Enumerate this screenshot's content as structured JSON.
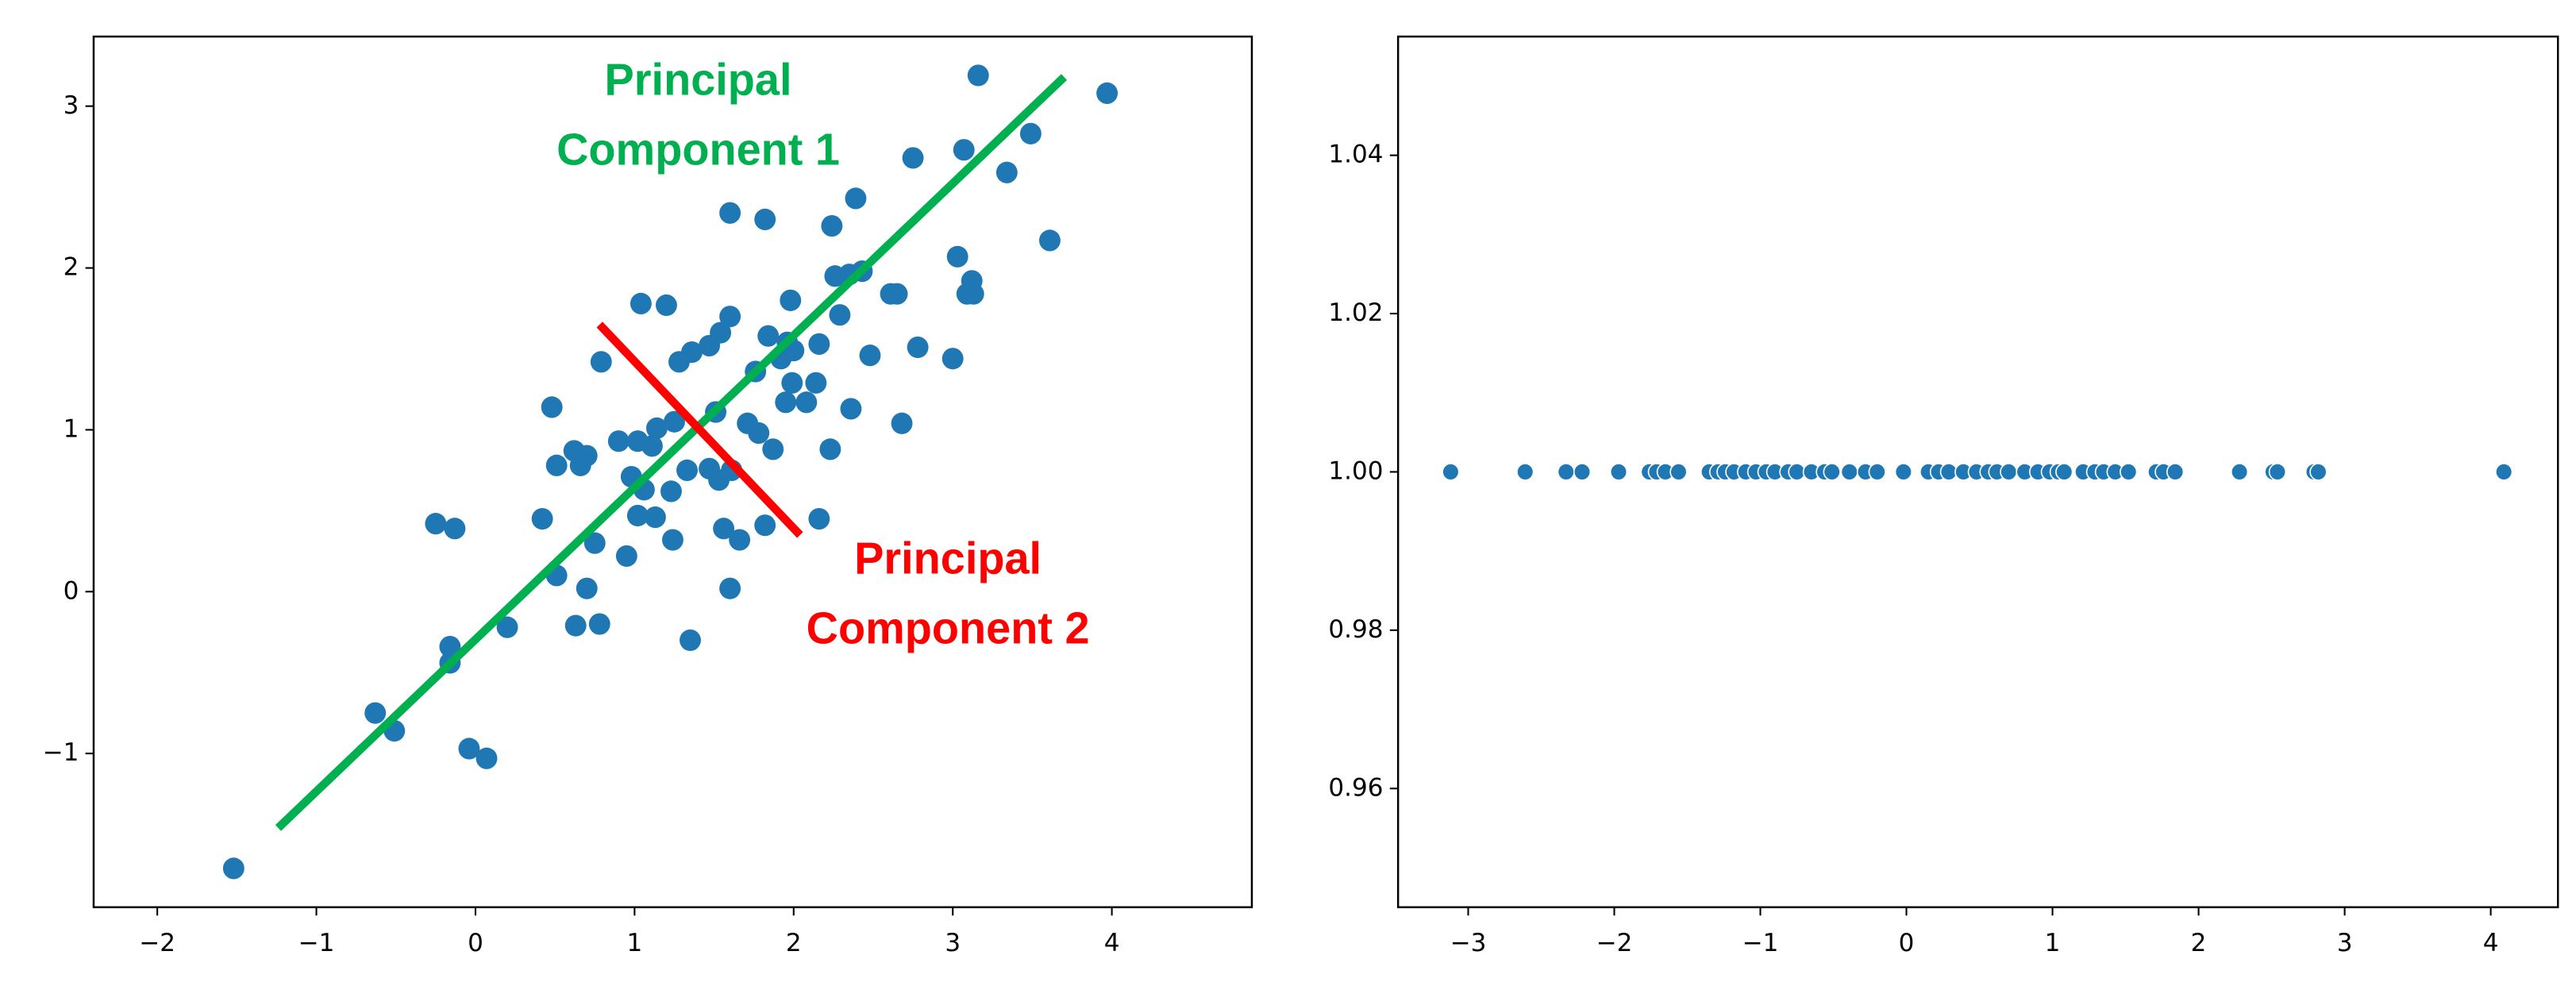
{
  "chart_data": [
    {
      "type": "scatter",
      "color": "#1f77b4",
      "x": [
        -1.52,
        -0.63,
        -0.51,
        -0.25,
        -0.13,
        -0.16,
        -0.16,
        -0.04,
        0.07,
        0.2,
        0.42,
        0.48,
        0.51,
        0.51,
        0.62,
        0.66,
        0.7,
        0.63,
        0.7,
        0.78,
        0.75,
        0.79,
        0.9,
        0.95,
        0.98,
        1.02,
        1.04,
        1.02,
        1.06,
        1.11,
        1.14,
        1.13,
        1.2,
        1.23,
        1.24,
        1.25,
        1.28,
        1.33,
        1.36,
        1.35,
        1.47,
        1.47,
        1.51,
        1.53,
        1.54,
        1.56,
        1.6,
        1.6,
        1.6,
        1.61,
        1.66,
        1.71,
        1.76,
        1.78,
        1.82,
        1.84,
        1.87,
        1.82,
        1.92,
        1.95,
        1.96,
        1.98,
        1.99,
        2.0,
        2.08,
        2.14,
        2.16,
        2.16,
        2.23,
        2.24,
        2.26,
        2.29,
        2.35,
        2.36,
        2.39,
        2.43,
        2.48,
        2.61,
        2.65,
        2.68,
        2.75,
        2.78,
        3.0,
        3.03,
        3.07,
        3.09,
        3.12,
        3.13,
        3.16,
        3.34,
        3.49,
        3.61,
        3.97
      ],
      "values": [
        -1.71,
        -0.75,
        -0.86,
        0.42,
        0.39,
        -0.34,
        -0.44,
        -0.97,
        -1.03,
        -0.22,
        0.45,
        1.14,
        0.1,
        0.78,
        0.87,
        0.78,
        0.84,
        -0.21,
        0.02,
        -0.2,
        0.3,
        1.42,
        0.93,
        0.22,
        0.71,
        0.93,
        1.78,
        0.47,
        0.63,
        0.9,
        1.01,
        0.46,
        1.77,
        0.62,
        0.32,
        1.05,
        1.42,
        0.75,
        1.48,
        -0.3,
        1.52,
        0.76,
        1.11,
        0.69,
        1.6,
        0.39,
        1.7,
        2.34,
        0.02,
        0.75,
        0.32,
        1.04,
        1.36,
        0.98,
        2.3,
        1.58,
        0.88,
        0.41,
        1.44,
        1.17,
        1.54,
        1.8,
        1.29,
        1.49,
        1.17,
        1.29,
        1.53,
        0.45,
        0.88,
        2.26,
        1.95,
        1.71,
        1.96,
        1.13,
        2.43,
        1.98,
        1.46,
        1.84,
        1.84,
        1.04,
        2.68,
        1.51,
        1.44,
        2.07,
        2.73,
        1.84,
        1.92,
        1.84,
        3.19,
        2.59,
        2.83,
        2.17,
        3.08
      ],
      "lines": [
        {
          "color": "#00b050",
          "x": [
            -1.24,
            3.7
          ],
          "y": [
            -1.46,
            3.18
          ]
        },
        {
          "color": "#ff0000",
          "x": [
            0.78,
            2.04
          ],
          "y": [
            1.65,
            0.35
          ]
        }
      ],
      "annotations": [
        {
          "text": [
            "Principal",
            "Component 1"
          ],
          "color": "#00b050"
        },
        {
          "text": [
            "Principal",
            "Component 2"
          ],
          "color": "#ff0000"
        }
      ],
      "xlim": [
        -2.4,
        4.88
      ],
      "ylim": [
        -1.95,
        3.43
      ],
      "xticks": [
        {
          "value": -2,
          "label": "−2"
        },
        {
          "value": -1,
          "label": "−1"
        },
        0,
        1,
        2,
        3,
        4
      ],
      "yticks": [
        {
          "value": -1,
          "label": "−1"
        },
        0,
        1,
        2,
        3
      ]
    },
    {
      "type": "scatter",
      "color": "#1f77b4",
      "x": [
        -3.12,
        -2.61,
        -2.33,
        -2.22,
        -1.97,
        -1.76,
        -1.71,
        -1.65,
        -1.56,
        -1.35,
        -1.29,
        -1.24,
        -1.18,
        -1.1,
        -1.03,
        -0.96,
        -0.9,
        -0.81,
        -0.75,
        -0.65,
        -0.56,
        -0.51,
        -0.39,
        -0.28,
        -0.2,
        -0.02,
        0.15,
        0.22,
        0.29,
        0.39,
        0.48,
        0.56,
        0.62,
        0.7,
        0.81,
        0.9,
        0.98,
        1.04,
        1.08,
        1.21,
        1.29,
        1.35,
        1.43,
        1.52,
        1.71,
        1.76,
        1.84,
        2.28,
        2.51,
        2.54,
        2.79,
        2.82,
        4.09
      ],
      "values": [
        1,
        1,
        1,
        1,
        1,
        1,
        1,
        1,
        1,
        1,
        1,
        1,
        1,
        1,
        1,
        1,
        1,
        1,
        1,
        1,
        1,
        1,
        1,
        1,
        1,
        1,
        1,
        1,
        1,
        1,
        1,
        1,
        1,
        1,
        1,
        1,
        1,
        1,
        1,
        1,
        1,
        1,
        1,
        1,
        1,
        1,
        1,
        1,
        1,
        1,
        1,
        1,
        1
      ],
      "xlim": [
        -3.48,
        4.46
      ],
      "ylim": [
        0.945,
        1.055
      ],
      "xticks": [
        {
          "value": -3,
          "label": "−3"
        },
        {
          "value": -2,
          "label": "−2"
        },
        {
          "value": -1,
          "label": "−1"
        },
        0,
        1,
        2,
        3,
        4
      ],
      "yticks": [
        0.96,
        0.98,
        {
          "value": 1,
          "label": "1.00"
        },
        1.02,
        1.04
      ]
    }
  ]
}
